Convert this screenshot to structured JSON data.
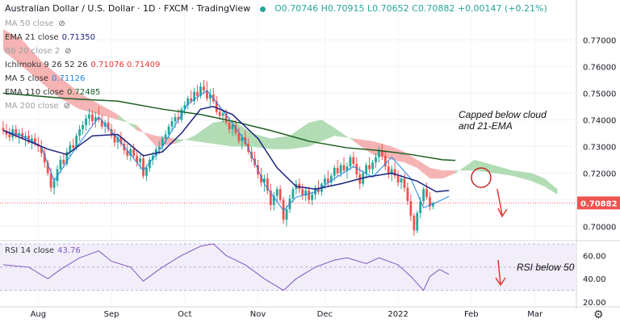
{
  "header": {
    "title": "Australian Dollar / U.S. Dollar · 1D · FXCM · TradingView",
    "ohlc": "O0.70746 H0.70915 L0.70652 C0.70882 +0.00147 (+0.21%)"
  },
  "indicators": [
    {
      "label": "MA 50 close",
      "value": "",
      "muted": true,
      "eye": true
    },
    {
      "label": "EMA 21 close",
      "value": "0.71350",
      "color": "#1a237e"
    },
    {
      "label": "BB 20 close 2",
      "value": "",
      "muted": true,
      "eye": true
    },
    {
      "label": "Ichimoku 9 26 52 26",
      "value": "0.71076  0.71409",
      "color": "#e53935"
    },
    {
      "label": "MA 5 close",
      "value": "0.71126",
      "color": "#1e88e5"
    },
    {
      "label": "EMA 110 close",
      "value": "0.72485",
      "color": "#1b5e20"
    },
    {
      "label": "MA 200 close",
      "value": "",
      "muted": true,
      "eye": true
    }
  ],
  "rsi": {
    "label": "RSI 14 close",
    "value": "43.76"
  },
  "annotations": {
    "cloud_note_line1": "Capped below cloud",
    "cloud_note_line2": "and 21-EMA",
    "rsi_note": "RSI below 50"
  },
  "icons": {
    "settings": "gear-icon",
    "visibility": "eye-off-icon"
  },
  "colors": {
    "up": "#26a69a",
    "down": "#ef5350",
    "cloud_bear": "#f4a6a6",
    "cloud_bull": "#a5d6a7",
    "ema21": "#1a237e",
    "ema110": "#1b5e20",
    "ma5": "#1e88e5",
    "rsi": "#7e57c2",
    "price_tag": "#ef5350",
    "annotation_arrow": "#e53935"
  },
  "chart_data": {
    "type": "candlestick",
    "price_axis": {
      "ticks": [
        0.7,
        0.71,
        0.72,
        0.73,
        0.74,
        0.75,
        0.76,
        0.77
      ],
      "tick_labels": [
        "0.70000",
        "0.71000",
        "0.72000",
        "0.73000",
        "0.74000",
        "0.75000",
        "0.76000",
        "0.77000"
      ],
      "range": [
        0.6965,
        0.7795
      ]
    },
    "last_price": {
      "value": 0.70882,
      "label": "0.70882"
    },
    "time_axis": {
      "labels": [
        "Aug",
        "Sep",
        "Oct",
        "Nov",
        "Dec",
        "2022",
        "Feb",
        "Mar"
      ],
      "positions": [
        11,
        34,
        57,
        80,
        101,
        124,
        147,
        167
      ],
      "range": [
        -1,
        180
      ]
    },
    "candles": [
      [
        0.737,
        0.7395,
        0.7345,
        0.736
      ],
      [
        0.736,
        0.7385,
        0.733,
        0.7345
      ],
      [
        0.7345,
        0.737,
        0.732,
        0.7335
      ],
      [
        0.7335,
        0.738,
        0.732,
        0.7365
      ],
      [
        0.7365,
        0.738,
        0.733,
        0.734
      ],
      [
        0.734,
        0.7365,
        0.731,
        0.735
      ],
      [
        0.735,
        0.737,
        0.7325,
        0.733
      ],
      [
        0.733,
        0.7355,
        0.73,
        0.734
      ],
      [
        0.734,
        0.736,
        0.731,
        0.7315
      ],
      [
        0.7315,
        0.7345,
        0.729,
        0.733
      ],
      [
        0.733,
        0.735,
        0.73,
        0.731
      ],
      [
        0.731,
        0.7335,
        0.728,
        0.73
      ],
      [
        0.73,
        0.7325,
        0.726,
        0.7275
      ],
      [
        0.7275,
        0.7295,
        0.722,
        0.724
      ],
      [
        0.724,
        0.725,
        0.719,
        0.72
      ],
      [
        0.72,
        0.722,
        0.713,
        0.7145
      ],
      [
        0.7145,
        0.7185,
        0.712,
        0.717
      ],
      [
        0.717,
        0.723,
        0.715,
        0.7215
      ],
      [
        0.7215,
        0.7265,
        0.72,
        0.725
      ],
      [
        0.725,
        0.7275,
        0.722,
        0.7235
      ],
      [
        0.7235,
        0.7295,
        0.7225,
        0.728
      ],
      [
        0.728,
        0.732,
        0.726,
        0.7305
      ],
      [
        0.7305,
        0.733,
        0.728,
        0.7295
      ],
      [
        0.7295,
        0.735,
        0.7285,
        0.734
      ],
      [
        0.734,
        0.738,
        0.732,
        0.7365
      ],
      [
        0.7365,
        0.7395,
        0.7345,
        0.738
      ],
      [
        0.738,
        0.742,
        0.736,
        0.7405
      ],
      [
        0.7405,
        0.744,
        0.738,
        0.742
      ],
      [
        0.742,
        0.7435,
        0.738,
        0.7395
      ],
      [
        0.7395,
        0.743,
        0.737,
        0.741
      ],
      [
        0.741,
        0.745,
        0.739,
        0.74
      ],
      [
        0.74,
        0.742,
        0.7365,
        0.7375
      ],
      [
        0.7375,
        0.74,
        0.735,
        0.739
      ],
      [
        0.739,
        0.741,
        0.7355,
        0.7365
      ],
      [
        0.7365,
        0.7385,
        0.733,
        0.7345
      ],
      [
        0.7345,
        0.7365,
        0.73,
        0.7315
      ],
      [
        0.7315,
        0.7345,
        0.729,
        0.7335
      ],
      [
        0.7335,
        0.7355,
        0.73,
        0.731
      ],
      [
        0.731,
        0.733,
        0.727,
        0.7285
      ],
      [
        0.7285,
        0.731,
        0.725,
        0.7265
      ],
      [
        0.7265,
        0.73,
        0.7245,
        0.729
      ],
      [
        0.729,
        0.731,
        0.7255,
        0.7265
      ],
      [
        0.7265,
        0.7285,
        0.7225,
        0.724
      ],
      [
        0.724,
        0.727,
        0.7215,
        0.7255
      ],
      [
        0.7255,
        0.727,
        0.718,
        0.719
      ],
      [
        0.719,
        0.723,
        0.717,
        0.722
      ],
      [
        0.722,
        0.726,
        0.7205,
        0.725
      ],
      [
        0.725,
        0.728,
        0.723,
        0.7265
      ],
      [
        0.7265,
        0.73,
        0.725,
        0.729
      ],
      [
        0.729,
        0.732,
        0.727,
        0.73
      ],
      [
        0.73,
        0.734,
        0.7285,
        0.733
      ],
      [
        0.733,
        0.736,
        0.731,
        0.7345
      ],
      [
        0.7345,
        0.7385,
        0.733,
        0.7375
      ],
      [
        0.7375,
        0.741,
        0.7355,
        0.7395
      ],
      [
        0.7395,
        0.7425,
        0.737,
        0.741
      ],
      [
        0.741,
        0.744,
        0.7385,
        0.74
      ],
      [
        0.74,
        0.745,
        0.739,
        0.744
      ],
      [
        0.744,
        0.747,
        0.742,
        0.7455
      ],
      [
        0.7455,
        0.749,
        0.744,
        0.748
      ],
      [
        0.748,
        0.751,
        0.746,
        0.747
      ],
      [
        0.747,
        0.752,
        0.7455,
        0.7505
      ],
      [
        0.7505,
        0.753,
        0.747,
        0.749
      ],
      [
        0.749,
        0.754,
        0.748,
        0.7525
      ],
      [
        0.7525,
        0.755,
        0.7495,
        0.751
      ],
      [
        0.751,
        0.7545,
        0.747,
        0.748
      ],
      [
        0.748,
        0.7515,
        0.745,
        0.7495
      ],
      [
        0.7495,
        0.752,
        0.746,
        0.747
      ],
      [
        0.747,
        0.749,
        0.742,
        0.743
      ],
      [
        0.743,
        0.7455,
        0.74,
        0.7415
      ],
      [
        0.7415,
        0.744,
        0.739,
        0.7425
      ],
      [
        0.7425,
        0.744,
        0.738,
        0.739
      ],
      [
        0.739,
        0.741,
        0.735,
        0.7365
      ],
      [
        0.7365,
        0.7395,
        0.734,
        0.738
      ],
      [
        0.738,
        0.74,
        0.734,
        0.735
      ],
      [
        0.735,
        0.737,
        0.731,
        0.732
      ],
      [
        0.732,
        0.7345,
        0.729,
        0.7335
      ],
      [
        0.7335,
        0.736,
        0.73,
        0.731
      ],
      [
        0.731,
        0.733,
        0.727,
        0.728
      ],
      [
        0.728,
        0.73,
        0.724,
        0.7255
      ],
      [
        0.7255,
        0.728,
        0.722,
        0.723
      ],
      [
        0.723,
        0.725,
        0.718,
        0.7195
      ],
      [
        0.7195,
        0.722,
        0.715,
        0.7165
      ],
      [
        0.7165,
        0.7195,
        0.713,
        0.718
      ],
      [
        0.718,
        0.72,
        0.712,
        0.7135
      ],
      [
        0.7135,
        0.716,
        0.706,
        0.708
      ],
      [
        0.708,
        0.713,
        0.706,
        0.7115
      ],
      [
        0.7115,
        0.715,
        0.709,
        0.714
      ],
      [
        0.714,
        0.7155,
        0.709,
        0.71
      ],
      [
        0.71,
        0.711,
        0.701,
        0.7025
      ],
      [
        0.7025,
        0.708,
        0.7,
        0.7065
      ],
      [
        0.7065,
        0.712,
        0.705,
        0.7105
      ],
      [
        0.7105,
        0.715,
        0.709,
        0.714
      ],
      [
        0.714,
        0.7175,
        0.712,
        0.716
      ],
      [
        0.716,
        0.718,
        0.7125,
        0.714
      ],
      [
        0.714,
        0.716,
        0.71,
        0.7115
      ],
      [
        0.7115,
        0.715,
        0.7095,
        0.7135
      ],
      [
        0.7135,
        0.715,
        0.7085,
        0.71
      ],
      [
        0.71,
        0.713,
        0.708,
        0.712
      ],
      [
        0.712,
        0.7155,
        0.71,
        0.7145
      ],
      [
        0.7145,
        0.7175,
        0.712,
        0.713
      ],
      [
        0.713,
        0.7165,
        0.7115,
        0.716
      ],
      [
        0.716,
        0.7195,
        0.714,
        0.718
      ],
      [
        0.718,
        0.721,
        0.715,
        0.7165
      ],
      [
        0.7165,
        0.72,
        0.715,
        0.719
      ],
      [
        0.719,
        0.723,
        0.717,
        0.722
      ],
      [
        0.722,
        0.725,
        0.719,
        0.72
      ],
      [
        0.72,
        0.724,
        0.7185,
        0.723
      ],
      [
        0.723,
        0.726,
        0.72,
        0.721
      ],
      [
        0.721,
        0.724,
        0.718,
        0.7225
      ],
      [
        0.7225,
        0.727,
        0.721,
        0.726
      ],
      [
        0.726,
        0.728,
        0.722,
        0.7235
      ],
      [
        0.7235,
        0.726,
        0.718,
        0.7195
      ],
      [
        0.7195,
        0.7225,
        0.714,
        0.716
      ],
      [
        0.716,
        0.721,
        0.715,
        0.72
      ],
      [
        0.72,
        0.724,
        0.718,
        0.723
      ],
      [
        0.723,
        0.726,
        0.72,
        0.7215
      ],
      [
        0.7215,
        0.725,
        0.7195,
        0.724
      ],
      [
        0.724,
        0.7275,
        0.722,
        0.726
      ],
      [
        0.726,
        0.73,
        0.724,
        0.7285
      ],
      [
        0.7285,
        0.731,
        0.725,
        0.7265
      ],
      [
        0.7265,
        0.7285,
        0.721,
        0.7225
      ],
      [
        0.7225,
        0.7245,
        0.718,
        0.7195
      ],
      [
        0.7195,
        0.723,
        0.717,
        0.7215
      ],
      [
        0.7215,
        0.724,
        0.718,
        0.719
      ],
      [
        0.719,
        0.721,
        0.715,
        0.7165
      ],
      [
        0.7165,
        0.7195,
        0.714,
        0.718
      ],
      [
        0.718,
        0.72,
        0.713,
        0.7145
      ],
      [
        0.7145,
        0.7165,
        0.708,
        0.7095
      ],
      [
        0.7095,
        0.712,
        0.702,
        0.704
      ],
      [
        0.704,
        0.705,
        0.6965,
        0.6985
      ],
      [
        0.6985,
        0.706,
        0.6975,
        0.705
      ],
      [
        0.705,
        0.711,
        0.703,
        0.7095
      ],
      [
        0.7095,
        0.715,
        0.708,
        0.714
      ],
      [
        0.714,
        0.7165,
        0.71,
        0.711
      ],
      [
        0.711,
        0.713,
        0.706,
        0.7075
      ],
      [
        0.7075,
        0.7092,
        0.7065,
        0.7088
      ]
    ],
    "ema21": [
      [
        0,
        0.736
      ],
      [
        14,
        0.729
      ],
      [
        20,
        0.727
      ],
      [
        28,
        0.734
      ],
      [
        36,
        0.7345
      ],
      [
        44,
        0.7265
      ],
      [
        50,
        0.728
      ],
      [
        56,
        0.735
      ],
      [
        62,
        0.744
      ],
      [
        66,
        0.745
      ],
      [
        72,
        0.742
      ],
      [
        80,
        0.733
      ],
      [
        86,
        0.722
      ],
      [
        92,
        0.715
      ],
      [
        98,
        0.714
      ],
      [
        106,
        0.716
      ],
      [
        114,
        0.7185
      ],
      [
        122,
        0.72
      ],
      [
        130,
        0.717
      ],
      [
        136,
        0.713
      ],
      [
        140,
        0.7135
      ]
    ],
    "ma5": [
      [
        0,
        0.736
      ],
      [
        6,
        0.734
      ],
      [
        12,
        0.73
      ],
      [
        16,
        0.717
      ],
      [
        22,
        0.728
      ],
      [
        30,
        0.741
      ],
      [
        36,
        0.733
      ],
      [
        44,
        0.721
      ],
      [
        50,
        0.73
      ],
      [
        58,
        0.746
      ],
      [
        64,
        0.751
      ],
      [
        70,
        0.742
      ],
      [
        76,
        0.732
      ],
      [
        82,
        0.716
      ],
      [
        88,
        0.706
      ],
      [
        92,
        0.711
      ],
      [
        98,
        0.713
      ],
      [
        104,
        0.718
      ],
      [
        110,
        0.7225
      ],
      [
        116,
        0.7185
      ],
      [
        122,
        0.726
      ],
      [
        128,
        0.718
      ],
      [
        132,
        0.707
      ],
      [
        136,
        0.709
      ],
      [
        140,
        0.7113
      ]
    ],
    "ema110": [
      [
        0,
        0.75
      ],
      [
        20,
        0.748
      ],
      [
        36,
        0.747
      ],
      [
        50,
        0.744
      ],
      [
        62,
        0.742
      ],
      [
        72,
        0.7395
      ],
      [
        84,
        0.736
      ],
      [
        96,
        0.732
      ],
      [
        108,
        0.7295
      ],
      [
        118,
        0.7285
      ],
      [
        128,
        0.727
      ],
      [
        138,
        0.725
      ],
      [
        142,
        0.7248
      ]
    ],
    "cloud": {
      "x": [
        0,
        6,
        12,
        18,
        24,
        30,
        36,
        42,
        48,
        54,
        60,
        66,
        72,
        78,
        84,
        90,
        96,
        100,
        104,
        110,
        116,
        122,
        126,
        130,
        134,
        138,
        142,
        148,
        154,
        160,
        166,
        170,
        174
      ],
      "span_a": [
        0.766,
        0.76,
        0.754,
        0.748,
        0.744,
        0.742,
        0.74,
        0.738,
        0.73,
        0.731,
        0.734,
        0.739,
        0.74,
        0.735,
        0.733,
        0.734,
        0.739,
        0.74,
        0.737,
        0.732,
        0.727,
        0.725,
        0.724,
        0.722,
        0.718,
        0.718,
        0.72,
        0.725,
        0.723,
        0.721,
        0.72,
        0.718,
        0.714
      ],
      "span_b": [
        0.774,
        0.77,
        0.762,
        0.756,
        0.75,
        0.746,
        0.742,
        0.736,
        0.734,
        0.733,
        0.732,
        0.731,
        0.73,
        0.73,
        0.729,
        0.729,
        0.73,
        0.732,
        0.734,
        0.733,
        0.732,
        0.73,
        0.728,
        0.725,
        0.722,
        0.721,
        0.721,
        0.721,
        0.72,
        0.719,
        0.717,
        0.715,
        0.712
      ]
    },
    "rsi_axis": {
      "ticks": [
        20,
        40,
        60
      ],
      "tick_labels": [
        "20.00",
        "40.00",
        "60.00"
      ],
      "range": [
        20,
        70
      ]
    },
    "rsi_values": [
      [
        0,
        52
      ],
      [
        8,
        50
      ],
      [
        14,
        40
      ],
      [
        18,
        48
      ],
      [
        24,
        58
      ],
      [
        30,
        64
      ],
      [
        34,
        55
      ],
      [
        40,
        50
      ],
      [
        44,
        38
      ],
      [
        50,
        50
      ],
      [
        56,
        60
      ],
      [
        62,
        68
      ],
      [
        66,
        70
      ],
      [
        70,
        60
      ],
      [
        76,
        52
      ],
      [
        82,
        40
      ],
      [
        88,
        30
      ],
      [
        92,
        40
      ],
      [
        98,
        50
      ],
      [
        104,
        56
      ],
      [
        108,
        58
      ],
      [
        114,
        53
      ],
      [
        118,
        58
      ],
      [
        124,
        52
      ],
      [
        128,
        42
      ],
      [
        132,
        30
      ],
      [
        134,
        42
      ],
      [
        137,
        48
      ],
      [
        140,
        43.76
      ]
    ]
  }
}
